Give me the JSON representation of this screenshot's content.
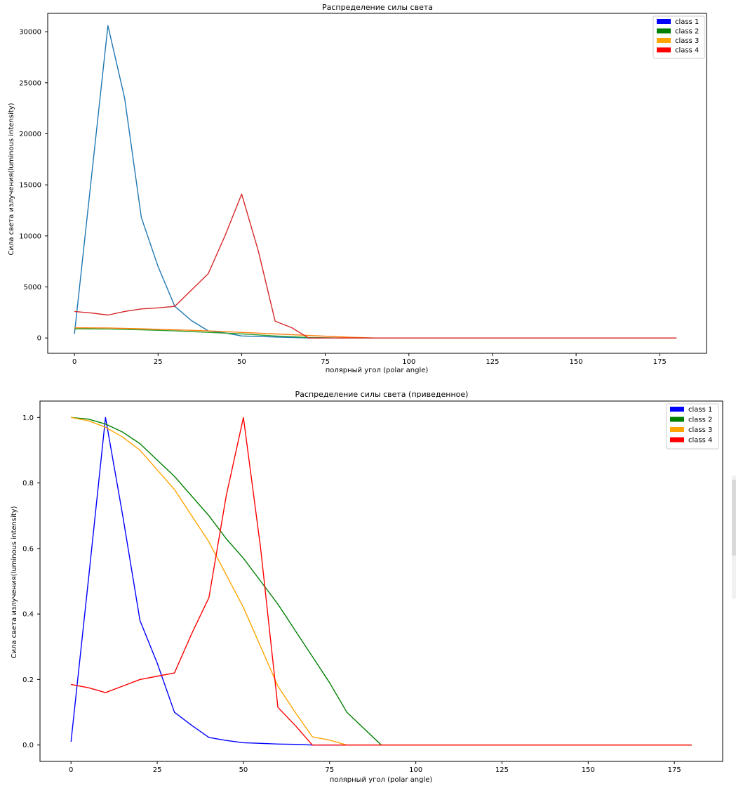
{
  "chart_data": [
    {
      "type": "line",
      "title": "Распределение силы света",
      "xlabel": "полярный угол (polar angle)",
      "ylabel": "Сила света излучения(luminous intensity)",
      "xlim": [
        -8,
        189
      ],
      "ylim": [
        -1500,
        31800
      ],
      "xticks": [
        0,
        25,
        50,
        75,
        100,
        125,
        150,
        175
      ],
      "yticks": [
        0,
        5000,
        10000,
        15000,
        20000,
        25000,
        30000
      ],
      "legend_position": "top-right",
      "legend": [
        "class 1",
        "class 2",
        "class 3",
        "class 4"
      ],
      "legend_colors": [
        "#0000ff",
        "#008000",
        "#ffa500",
        "#ff0000"
      ],
      "series": [
        {
          "name": "class 1",
          "color": "#1f77b4",
          "x": [
            0,
            5,
            10,
            15,
            20,
            25,
            30,
            35,
            40,
            45,
            50,
            55,
            60,
            65,
            70,
            80,
            90,
            180
          ],
          "y": [
            400,
            15500,
            30600,
            23500,
            11800,
            7000,
            3100,
            1700,
            700,
            500,
            200,
            150,
            100,
            50,
            0,
            0,
            0,
            0
          ]
        },
        {
          "name": "class 2",
          "color": "#2ca02c",
          "x": [
            0,
            10,
            20,
            30,
            40,
            50,
            60,
            70,
            80,
            90,
            180
          ],
          "y": [
            900,
            880,
            800,
            700,
            550,
            400,
            200,
            50,
            0,
            0,
            0
          ]
        },
        {
          "name": "class 3",
          "color": "#ff7f0e",
          "x": [
            0,
            10,
            20,
            30,
            40,
            50,
            60,
            70,
            80,
            90,
            180
          ],
          "y": [
            1000,
            980,
            900,
            800,
            700,
            550,
            400,
            250,
            100,
            0,
            0
          ]
        },
        {
          "name": "class 4",
          "color": "#d62728",
          "x": [
            0,
            5,
            10,
            15,
            20,
            25,
            30,
            35,
            40,
            45,
            50,
            55,
            60,
            65,
            70,
            80,
            180
          ],
          "y": [
            2600,
            2450,
            2250,
            2600,
            2850,
            2950,
            3100,
            4700,
            6300,
            10000,
            14100,
            8500,
            1650,
            1000,
            0,
            0,
            0
          ]
        }
      ]
    },
    {
      "type": "line",
      "title": "Распределение силы света (приведенное)",
      "xlabel": "полярный угол (polar angle)",
      "ylabel": "Сила света излучения(luminous intensity)",
      "xlim": [
        -9,
        189
      ],
      "ylim": [
        -0.05,
        1.05
      ],
      "xticks": [
        0,
        25,
        50,
        75,
        100,
        125,
        150,
        175
      ],
      "yticks": [
        0.0,
        0.2,
        0.4,
        0.6,
        0.8,
        1.0
      ],
      "ytick_labels": [
        "0.0",
        "0.2",
        "0.4",
        "0.6",
        "0.8",
        "1.0"
      ],
      "legend_position": "top-right",
      "legend": [
        "class 1",
        "class 2",
        "class 3",
        "class 4"
      ],
      "legend_colors": [
        "#0000ff",
        "#008000",
        "#ffa500",
        "#ff0000"
      ],
      "series": [
        {
          "name": "class 1",
          "color": "#0000ff",
          "x": [
            0,
            5,
            10,
            15,
            20,
            25,
            30,
            35,
            40,
            45,
            50,
            55,
            60,
            65,
            70,
            80,
            180
          ],
          "y": [
            0.01,
            0.5,
            1.0,
            0.7,
            0.38,
            0.25,
            0.1,
            0.06,
            0.023,
            0.014,
            0.007,
            0.005,
            0.003,
            0.002,
            0.0,
            0.0,
            0.0
          ]
        },
        {
          "name": "class 2",
          "color": "#008000",
          "x": [
            0,
            5,
            10,
            15,
            20,
            25,
            30,
            35,
            40,
            45,
            50,
            55,
            60,
            65,
            70,
            75,
            80,
            85,
            90,
            180
          ],
          "y": [
            1.0,
            0.995,
            0.98,
            0.955,
            0.92,
            0.87,
            0.82,
            0.76,
            0.7,
            0.63,
            0.57,
            0.5,
            0.43,
            0.35,
            0.27,
            0.19,
            0.1,
            0.05,
            0.0,
            0.0
          ]
        },
        {
          "name": "class 3",
          "color": "#ffa500",
          "x": [
            0,
            5,
            10,
            15,
            20,
            25,
            30,
            35,
            40,
            45,
            50,
            55,
            60,
            65,
            70,
            75,
            80,
            180
          ],
          "y": [
            1.0,
            0.99,
            0.97,
            0.94,
            0.9,
            0.84,
            0.78,
            0.7,
            0.62,
            0.52,
            0.42,
            0.3,
            0.18,
            0.1,
            0.025,
            0.015,
            0.0,
            0.0
          ]
        },
        {
          "name": "class 4",
          "color": "#ff0000",
          "x": [
            0,
            5,
            10,
            15,
            20,
            25,
            30,
            35,
            40,
            45,
            50,
            55,
            60,
            65,
            70,
            80,
            180
          ],
          "y": [
            0.185,
            0.175,
            0.16,
            0.18,
            0.2,
            0.21,
            0.22,
            0.34,
            0.45,
            0.76,
            1.0,
            0.6,
            0.115,
            0.06,
            0.0,
            0.0,
            0.0
          ]
        }
      ]
    }
  ]
}
